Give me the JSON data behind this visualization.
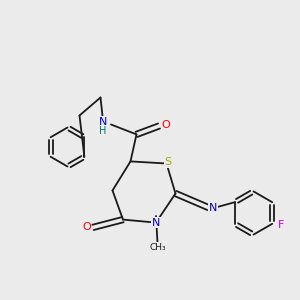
{
  "background_color": "#ebebeb",
  "bond_color": "#1a1a1a",
  "atom_colors": {
    "N": "#0000cc",
    "O": "#ff0000",
    "S": "#aaaa00",
    "F": "#cc00cc",
    "H": "#007070",
    "C": "#1a1a1a"
  },
  "font_size": 7.5,
  "line_width": 1.3
}
